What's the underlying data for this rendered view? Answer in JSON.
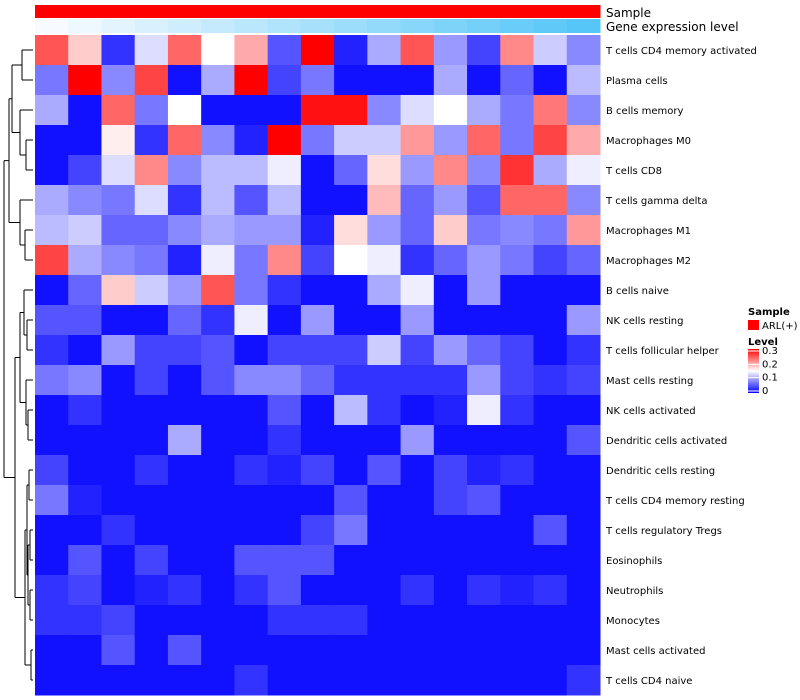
{
  "chart_data": {
    "type": "heatmap",
    "title": "",
    "rows": [
      "T cells CD4 memory activated",
      "Plasma cells",
      "B cells memory",
      "Macrophages M0",
      "T cells CD8",
      "T cells gamma delta",
      "Macrophages M1",
      "Macrophages M2",
      "B cells naive",
      "NK cells resting",
      "T cells follicular helper",
      "Mast cells resting",
      "NK cells activated",
      "Dendritic cells activated",
      "Dendritic cells resting",
      "T cells CD4 memory resting",
      "T cells regulatory  Tregs",
      "Eosinophils",
      "Neutrophils",
      "Monocytes",
      "Mast cells activated",
      "T cells CD4 naive"
    ],
    "n_columns": 17,
    "values": [
      [
        0.25,
        0.18,
        0.03,
        0.13,
        0.24,
        0.15,
        0.2,
        0.05,
        0.3,
        0.02,
        0.1,
        0.25,
        0.09,
        0.04,
        0.22,
        0.12,
        0.08
      ],
      [
        0.07,
        0.3,
        0.08,
        0.26,
        0.01,
        0.1,
        0.3,
        0.04,
        0.07,
        0.01,
        0.01,
        0.01,
        0.1,
        0.01,
        0.06,
        0.01,
        0.11
      ],
      [
        0.1,
        0.01,
        0.24,
        0.07,
        0.15,
        0.01,
        0.01,
        0.01,
        0.29,
        0.29,
        0.08,
        0.13,
        0.15,
        0.1,
        0.07,
        0.23,
        0.08
      ],
      [
        0.01,
        0.01,
        0.16,
        0.03,
        0.24,
        0.08,
        0.02,
        0.3,
        0.07,
        0.12,
        0.12,
        0.21,
        0.09,
        0.24,
        0.07,
        0.26,
        0.2
      ],
      [
        0.01,
        0.04,
        0.13,
        0.22,
        0.08,
        0.11,
        0.11,
        0.14,
        0.01,
        0.06,
        0.17,
        0.09,
        0.22,
        0.08,
        0.27,
        0.1,
        0.14
      ],
      [
        0.1,
        0.08,
        0.07,
        0.13,
        0.03,
        0.11,
        0.05,
        0.11,
        0.01,
        0.01,
        0.19,
        0.06,
        0.09,
        0.05,
        0.24,
        0.24,
        0.08
      ],
      [
        0.11,
        0.12,
        0.06,
        0.06,
        0.08,
        0.1,
        0.09,
        0.09,
        0.02,
        0.17,
        0.09,
        0.06,
        0.18,
        0.07,
        0.08,
        0.07,
        0.21
      ],
      [
        0.26,
        0.1,
        0.08,
        0.07,
        0.02,
        0.14,
        0.07,
        0.22,
        0.04,
        0.15,
        0.14,
        0.03,
        0.06,
        0.09,
        0.07,
        0.04,
        0.06
      ],
      [
        0.01,
        0.06,
        0.18,
        0.12,
        0.09,
        0.25,
        0.07,
        0.03,
        0.01,
        0.01,
        0.1,
        0.14,
        0.01,
        0.09,
        0.01,
        0.01,
        0.01
      ],
      [
        0.05,
        0.05,
        0.01,
        0.01,
        0.06,
        0.03,
        0.14,
        0.01,
        0.09,
        0.01,
        0.01,
        0.09,
        0.01,
        0.01,
        0.01,
        0.01,
        0.09
      ],
      [
        0.03,
        0.01,
        0.09,
        0.04,
        0.04,
        0.05,
        0.01,
        0.04,
        0.04,
        0.04,
        0.12,
        0.04,
        0.09,
        0.06,
        0.04,
        0.01,
        0.03
      ],
      [
        0.07,
        0.08,
        0.01,
        0.04,
        0.01,
        0.05,
        0.08,
        0.08,
        0.06,
        0.03,
        0.03,
        0.03,
        0.03,
        0.09,
        0.04,
        0.03,
        0.04
      ],
      [
        0.01,
        0.03,
        0.01,
        0.01,
        0.01,
        0.01,
        0.01,
        0.05,
        0.01,
        0.11,
        0.03,
        0.01,
        0.02,
        0.14,
        0.03,
        0.01,
        0.01
      ],
      [
        0.01,
        0.01,
        0.01,
        0.01,
        0.1,
        0.01,
        0.01,
        0.03,
        0.01,
        0.01,
        0.01,
        0.09,
        0.01,
        0.01,
        0.01,
        0.01,
        0.05
      ],
      [
        0.04,
        0.01,
        0.01,
        0.03,
        0.01,
        0.01,
        0.03,
        0.02,
        0.04,
        0.01,
        0.05,
        0.01,
        0.04,
        0.02,
        0.03,
        0.01,
        0.01
      ],
      [
        0.07,
        0.02,
        0.01,
        0.01,
        0.01,
        0.01,
        0.01,
        0.01,
        0.01,
        0.05,
        0.01,
        0.01,
        0.04,
        0.05,
        0.01,
        0.01,
        0.01
      ],
      [
        0.01,
        0.01,
        0.03,
        0.01,
        0.01,
        0.01,
        0.01,
        0.01,
        0.04,
        0.07,
        0.01,
        0.01,
        0.01,
        0.01,
        0.01,
        0.05,
        0.01
      ],
      [
        0.01,
        0.05,
        0.01,
        0.04,
        0.01,
        0.01,
        0.05,
        0.05,
        0.05,
        0.01,
        0.01,
        0.01,
        0.01,
        0.01,
        0.01,
        0.01,
        0.01
      ],
      [
        0.03,
        0.04,
        0.01,
        0.02,
        0.03,
        0.01,
        0.03,
        0.05,
        0.01,
        0.01,
        0.01,
        0.03,
        0.01,
        0.03,
        0.02,
        0.03,
        0.01
      ],
      [
        0.03,
        0.03,
        0.04,
        0.01,
        0.01,
        0.01,
        0.01,
        0.03,
        0.03,
        0.03,
        0.01,
        0.01,
        0.01,
        0.01,
        0.01,
        0.01,
        0.01
      ],
      [
        0.01,
        0.01,
        0.05,
        0.01,
        0.05,
        0.01,
        0.01,
        0.01,
        0.01,
        0.01,
        0.01,
        0.01,
        0.01,
        0.01,
        0.01,
        0.01,
        0.01
      ],
      [
        0.01,
        0.01,
        0.01,
        0.01,
        0.01,
        0.01,
        0.03,
        0.01,
        0.01,
        0.01,
        0.01,
        0.01,
        0.01,
        0.01,
        0.01,
        0.01,
        0.03
      ]
    ],
    "color_scale": {
      "min": 0,
      "max": 0.3,
      "low_color": "#0000ff",
      "mid_color": "#ffffff",
      "high_color": "#ff0000",
      "ticks": [
        "0.3",
        "0.2",
        "0.1",
        "0"
      ]
    },
    "column_annotations": {
      "sample": {
        "label": "Sample",
        "values": [
          "ARL(+)",
          "ARL(+)",
          "ARL(+)",
          "ARL(+)",
          "ARL(+)",
          "ARL(+)",
          "ARL(+)",
          "ARL(+)",
          "ARL(+)",
          "ARL(+)",
          "ARL(+)",
          "ARL(+)",
          "ARL(+)",
          "ARL(+)",
          "ARL(+)",
          "ARL(+)",
          "ARL(+)"
        ],
        "color": "#ff0000"
      },
      "gene_expression": {
        "label": "Gene expression level",
        "values": [
          0.0,
          0.06,
          0.12,
          0.18,
          0.24,
          0.3,
          0.36,
          0.42,
          0.48,
          0.54,
          0.6,
          0.66,
          0.72,
          0.78,
          0.84,
          0.9,
          0.96
        ],
        "low_color": "#f7fbff",
        "high_color": "#4fc3f7"
      }
    },
    "legend": {
      "sample_title": "Sample",
      "sample_entry": "ARL(+)",
      "sample_color": "#ff0000",
      "level_title": "Level"
    },
    "row_dendrogram": true
  }
}
